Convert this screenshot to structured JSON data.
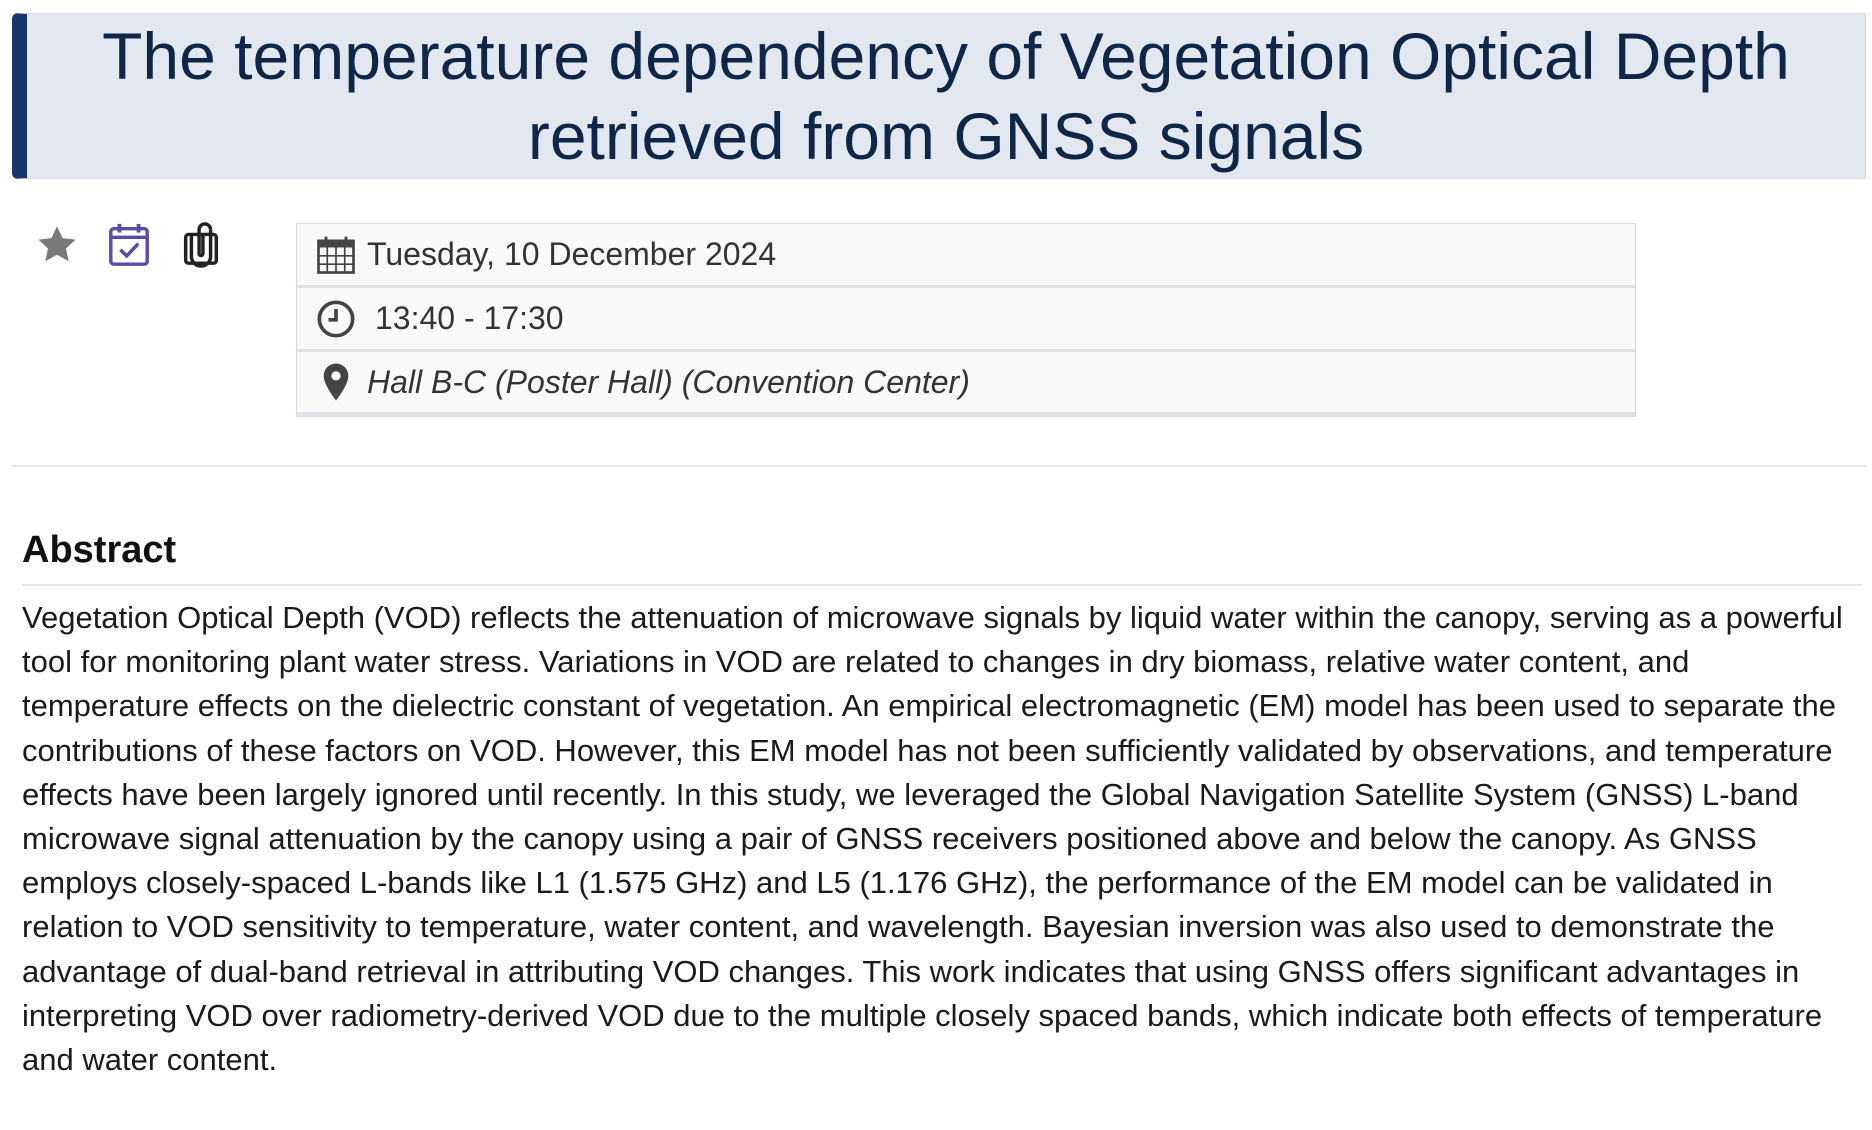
{
  "header": {
    "title": "The temperature dependency of Vegetation Optical Depth retrieved from GNSS signals"
  },
  "actions": [
    {
      "name": "favorite",
      "icon": "star-icon",
      "color": "#7a7a7a"
    },
    {
      "name": "add-to-calendar",
      "icon": "calendar-check-icon",
      "color": "#5b4aa8"
    },
    {
      "name": "attachments",
      "icon": "paperclip-icon",
      "color": "#222222"
    }
  ],
  "session": {
    "date": "Tuesday, 10 December 2024",
    "time": "13:40 - 17:30",
    "location": "Hall B-C (Poster Hall) (Convention Center)"
  },
  "abstract": {
    "heading": "Abstract",
    "body": "Vegetation Optical Depth (VOD) reflects the attenuation of microwave signals by liquid water within the canopy, serving as a powerful tool for monitoring plant water stress. Variations in VOD are related to changes in dry biomass, relative water content, and temperature effects on the dielectric constant of vegetation. An empirical electromagnetic (EM) model has been used to separate the contributions of these factors on VOD. However, this EM model has not been sufficiently validated by observations, and temperature effects have been largely ignored until recently. In this study, we leveraged the Global Navigation Satellite System (GNSS) L-band microwave signal attenuation by the canopy using a pair of GNSS receivers positioned above and below the canopy. As GNSS employs closely-spaced L-bands like L1 (1.575 GHz) and L5 (1.176 GHz), the performance of the EM model can be validated in relation to VOD sensitivity to temperature, water content, and wavelength. Bayesian inversion was also used to demonstrate the advantage of dual-band retrieval in attributing VOD changes. This work indicates that using GNSS offers significant advantages in interpreting VOD over radiometry-derived VOD due to the multiple closely spaced bands, which indicate both effects of temperature and water content."
  }
}
